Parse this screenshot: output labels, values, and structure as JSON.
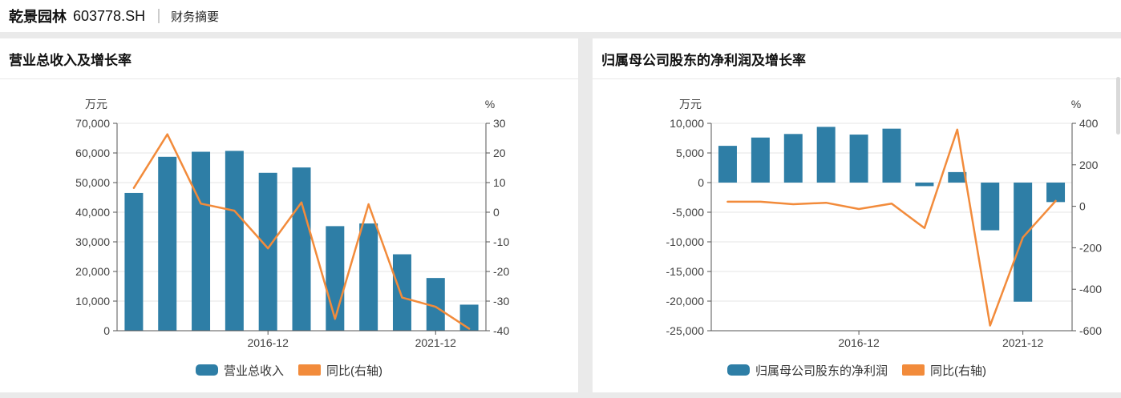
{
  "header": {
    "company": "乾景园林",
    "code": "603778.SH",
    "tab": "财务摘要"
  },
  "colors": {
    "bar": "#2e7ea6",
    "line": "#f28b3b",
    "grid": "#e6e6e6",
    "axis": "#555555",
    "tick_text": "#404040",
    "title_text": "#111111",
    "page_bg": "#eaeaea",
    "card_bg": "#ffffff",
    "legend_text": "#333333"
  },
  "chart_data": [
    {
      "type": "bar+line",
      "title": "营业总收入及增长率",
      "legend": [
        "营业总收入",
        "同比(右轴)"
      ],
      "left_axis": {
        "unit": "万元",
        "min": 0,
        "max": 70000,
        "step": 10000
      },
      "right_axis": {
        "unit": "%",
        "min": -40,
        "max": 30,
        "step": 10
      },
      "num_points": 11,
      "x_ticks": [
        {
          "index": 4,
          "label": "2016-12"
        },
        {
          "index": 9,
          "label": "2021-12"
        }
      ],
      "series": [
        {
          "name": "营业总收入",
          "type": "bar",
          "axis": "left",
          "values": [
            46500,
            58700,
            60400,
            60700,
            53300,
            55100,
            35300,
            36200,
            25800,
            17800,
            8800
          ]
        },
        {
          "name": "同比(右轴)",
          "type": "line",
          "axis": "right",
          "values": [
            8.2,
            26.3,
            2.9,
            0.5,
            -12.2,
            3.3,
            -36,
            2.7,
            -28.8,
            -31.9,
            -39.3
          ]
        }
      ]
    },
    {
      "type": "bar+line",
      "title": "归属母公司股东的净利润及增长率",
      "legend": [
        "归属母公司股东的净利润",
        "同比(右轴)"
      ],
      "left_axis": {
        "unit": "万元",
        "min": -25000,
        "max": 10000,
        "step": 5000
      },
      "right_axis": {
        "unit": "%",
        "min": -600,
        "max": 400,
        "step": 200
      },
      "num_points": 11,
      "x_ticks": [
        {
          "index": 4,
          "label": "2016-12"
        },
        {
          "index": 9,
          "label": "2021-12"
        }
      ],
      "series": [
        {
          "name": "归属母公司股东的净利润",
          "type": "bar",
          "axis": "left",
          "values": [
            6200,
            7600,
            8200,
            9400,
            8100,
            9100,
            -600,
            1770,
            -8050,
            -20100,
            -3290
          ]
        },
        {
          "name": "同比(右轴)",
          "type": "line",
          "axis": "right",
          "values": [
            22,
            22,
            10,
            17,
            -13,
            13,
            -105,
            370,
            -575,
            -150,
            26
          ]
        }
      ]
    }
  ]
}
